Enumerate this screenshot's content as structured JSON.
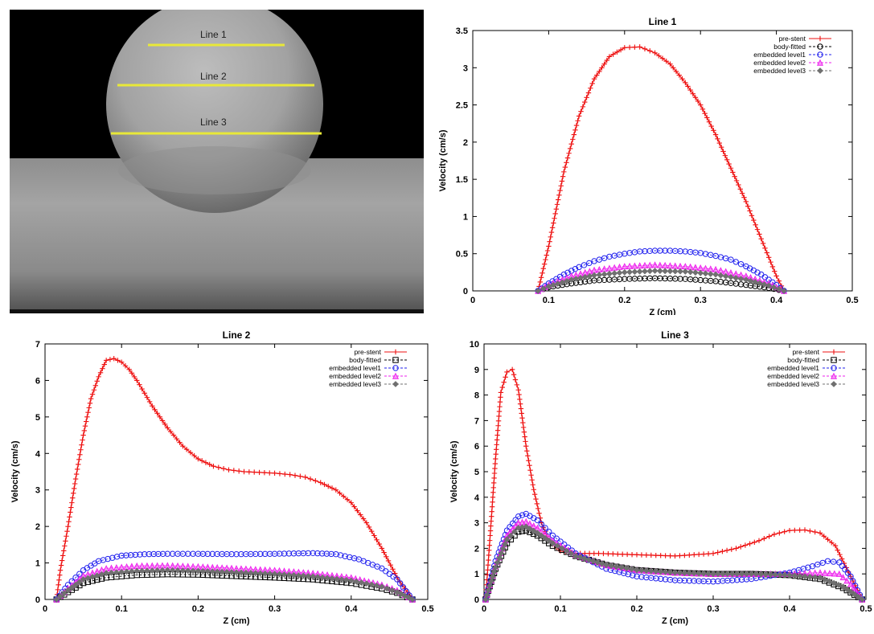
{
  "image_panel": {
    "labels": [
      "Line 1",
      "Line 2",
      "Line 3"
    ],
    "line_color": "#e8e838"
  },
  "colors": {
    "pre_stent": "#ee1111",
    "body_fitted": "#000000",
    "embedded_level1": "#2222ee",
    "embedded_level2": "#ee22ee",
    "embedded_level3": "#707070"
  },
  "chart_data": [
    {
      "type": "line",
      "title": "Line 1",
      "xlabel": "Z (cm)",
      "ylabel": "Velocity (cm/s)",
      "xlim": [
        0,
        0.5
      ],
      "ylim": [
        0,
        3.5
      ],
      "xticks": [
        "0",
        "0.1",
        "0.2",
        "0.3",
        "0.4",
        "0.5"
      ],
      "yticks": [
        "0",
        "0.5",
        "1",
        "1.5",
        "2",
        "2.5",
        "3",
        "3.5"
      ],
      "legend": "top-right",
      "series": [
        {
          "name": "pre-stent",
          "marker": "plus",
          "x": [
            0.086,
            0.1,
            0.12,
            0.14,
            0.16,
            0.18,
            0.2,
            0.22,
            0.24,
            0.26,
            0.28,
            0.3,
            0.32,
            0.34,
            0.36,
            0.38,
            0.4,
            0.41
          ],
          "y": [
            0,
            0.6,
            1.6,
            2.35,
            2.85,
            3.15,
            3.27,
            3.28,
            3.2,
            3.05,
            2.8,
            2.5,
            2.1,
            1.65,
            1.2,
            0.7,
            0.2,
            0
          ]
        },
        {
          "name": "body-fitted",
          "marker": "circle",
          "x": [
            0.086,
            0.1,
            0.13,
            0.16,
            0.2,
            0.24,
            0.28,
            0.32,
            0.36,
            0.39,
            0.41
          ],
          "y": [
            0,
            0.05,
            0.1,
            0.14,
            0.16,
            0.17,
            0.16,
            0.13,
            0.08,
            0.04,
            0
          ]
        },
        {
          "name": "embedded level1",
          "marker": "circle",
          "x": [
            0.086,
            0.1,
            0.12,
            0.14,
            0.16,
            0.18,
            0.2,
            0.22,
            0.24,
            0.26,
            0.28,
            0.3,
            0.32,
            0.34,
            0.36,
            0.38,
            0.4,
            0.41
          ],
          "y": [
            0,
            0.1,
            0.22,
            0.32,
            0.4,
            0.46,
            0.5,
            0.53,
            0.54,
            0.54,
            0.53,
            0.51,
            0.47,
            0.42,
            0.33,
            0.22,
            0.08,
            0
          ]
        },
        {
          "name": "embedded level2",
          "marker": "triangle",
          "x": [
            0.086,
            0.1,
            0.13,
            0.16,
            0.2,
            0.24,
            0.28,
            0.32,
            0.36,
            0.39,
            0.41
          ],
          "y": [
            0,
            0.08,
            0.2,
            0.28,
            0.33,
            0.35,
            0.33,
            0.29,
            0.2,
            0.1,
            0
          ]
        },
        {
          "name": "embedded level3",
          "marker": "diamond",
          "x": [
            0.086,
            0.1,
            0.13,
            0.16,
            0.2,
            0.24,
            0.28,
            0.32,
            0.36,
            0.39,
            0.41
          ],
          "y": [
            0,
            0.06,
            0.15,
            0.21,
            0.25,
            0.27,
            0.26,
            0.22,
            0.15,
            0.07,
            0
          ]
        }
      ]
    },
    {
      "type": "line",
      "title": "Line 2",
      "xlabel": "Z (cm)",
      "ylabel": "Velocity (cm/s)",
      "xlim": [
        0,
        0.5
      ],
      "ylim": [
        0,
        7
      ],
      "xticks": [
        "0",
        "0.1",
        "0.2",
        "0.3",
        "0.4",
        "0.5"
      ],
      "yticks": [
        "0",
        "1",
        "2",
        "3",
        "4",
        "5",
        "6",
        "7"
      ],
      "legend": "top-right",
      "series": [
        {
          "name": "pre-stent",
          "marker": "plus",
          "x": [
            0.015,
            0.02,
            0.03,
            0.04,
            0.05,
            0.06,
            0.07,
            0.08,
            0.09,
            0.1,
            0.11,
            0.12,
            0.14,
            0.16,
            0.18,
            0.2,
            0.22,
            0.24,
            0.26,
            0.28,
            0.3,
            0.32,
            0.34,
            0.36,
            0.38,
            0.4,
            0.42,
            0.44,
            0.46,
            0.48
          ],
          "y": [
            0,
            0.8,
            2.0,
            3.3,
            4.5,
            5.5,
            6.1,
            6.55,
            6.6,
            6.5,
            6.3,
            6.0,
            5.3,
            4.7,
            4.2,
            3.85,
            3.65,
            3.55,
            3.5,
            3.48,
            3.46,
            3.42,
            3.35,
            3.2,
            3.0,
            2.65,
            2.1,
            1.4,
            0.6,
            0
          ]
        },
        {
          "name": "body-fitted",
          "marker": "square",
          "x": [
            0.015,
            0.03,
            0.05,
            0.08,
            0.12,
            0.16,
            0.2,
            0.25,
            0.3,
            0.35,
            0.4,
            0.44,
            0.46,
            0.48
          ],
          "y": [
            0,
            0.2,
            0.45,
            0.6,
            0.67,
            0.69,
            0.68,
            0.64,
            0.6,
            0.55,
            0.45,
            0.3,
            0.18,
            0
          ]
        },
        {
          "name": "embedded level1",
          "marker": "circle",
          "x": [
            0.015,
            0.03,
            0.05,
            0.07,
            0.1,
            0.13,
            0.16,
            0.2,
            0.25,
            0.3,
            0.35,
            0.38,
            0.41,
            0.44,
            0.46,
            0.48
          ],
          "y": [
            0,
            0.4,
            0.8,
            1.05,
            1.2,
            1.24,
            1.25,
            1.25,
            1.24,
            1.25,
            1.27,
            1.24,
            1.1,
            0.85,
            0.55,
            0
          ]
        },
        {
          "name": "embedded level2",
          "marker": "triangle",
          "x": [
            0.015,
            0.03,
            0.05,
            0.08,
            0.12,
            0.16,
            0.2,
            0.25,
            0.3,
            0.35,
            0.4,
            0.44,
            0.46,
            0.48
          ],
          "y": [
            0,
            0.3,
            0.65,
            0.85,
            0.92,
            0.93,
            0.9,
            0.85,
            0.8,
            0.72,
            0.6,
            0.4,
            0.25,
            0
          ]
        },
        {
          "name": "embedded level3",
          "marker": "diamond",
          "x": [
            0.015,
            0.03,
            0.05,
            0.08,
            0.12,
            0.16,
            0.2,
            0.25,
            0.3,
            0.35,
            0.4,
            0.44,
            0.46,
            0.48
          ],
          "y": [
            0,
            0.25,
            0.55,
            0.72,
            0.78,
            0.8,
            0.78,
            0.74,
            0.7,
            0.63,
            0.52,
            0.35,
            0.2,
            0
          ]
        }
      ]
    },
    {
      "type": "line",
      "title": "Line 3",
      "xlabel": "Z (cm)",
      "ylabel": "Velocity (cm/s)",
      "xlim": [
        0,
        0.5
      ],
      "ylim": [
        0,
        10
      ],
      "xticks": [
        "0",
        "0.1",
        "0.2",
        "0.3",
        "0.4",
        "0.5"
      ],
      "yticks": [
        "0",
        "1",
        "2",
        "3",
        "4",
        "5",
        "6",
        "7",
        "8",
        "9",
        "10"
      ],
      "legend": "top-right",
      "series": [
        {
          "name": "pre-stent",
          "marker": "plus",
          "x": [
            0.002,
            0.008,
            0.015,
            0.022,
            0.03,
            0.037,
            0.045,
            0.055,
            0.065,
            0.075,
            0.085,
            0.1,
            0.12,
            0.15,
            0.2,
            0.25,
            0.3,
            0.33,
            0.36,
            0.38,
            0.4,
            0.42,
            0.44,
            0.46,
            0.48,
            0.495
          ],
          "y": [
            0,
            2.5,
            5.5,
            8.1,
            8.9,
            9.0,
            8.2,
            6.0,
            4.3,
            3.0,
            2.3,
            1.9,
            1.8,
            1.8,
            1.75,
            1.7,
            1.8,
            2.0,
            2.3,
            2.55,
            2.7,
            2.72,
            2.6,
            2.1,
            0.9,
            0
          ]
        },
        {
          "name": "body-fitted",
          "marker": "square",
          "x": [
            0.002,
            0.015,
            0.03,
            0.045,
            0.055,
            0.07,
            0.09,
            0.12,
            0.16,
            0.2,
            0.25,
            0.3,
            0.35,
            0.4,
            0.44,
            0.47,
            0.495
          ],
          "y": [
            0,
            1.2,
            2.2,
            2.65,
            2.7,
            2.5,
            2.1,
            1.7,
            1.35,
            1.15,
            1.05,
            1.0,
            1.0,
            0.95,
            0.8,
            0.45,
            0
          ]
        },
        {
          "name": "embedded level1",
          "marker": "circle",
          "x": [
            0.002,
            0.015,
            0.03,
            0.045,
            0.055,
            0.07,
            0.09,
            0.12,
            0.16,
            0.2,
            0.25,
            0.3,
            0.35,
            0.4,
            0.43,
            0.45,
            0.465,
            0.48,
            0.495
          ],
          "y": [
            0,
            1.5,
            2.7,
            3.25,
            3.35,
            3.1,
            2.5,
            1.8,
            1.2,
            0.9,
            0.75,
            0.7,
            0.8,
            1.05,
            1.3,
            1.5,
            1.45,
            0.9,
            0
          ]
        },
        {
          "name": "embedded level2",
          "marker": "triangle",
          "x": [
            0.002,
            0.015,
            0.03,
            0.045,
            0.055,
            0.07,
            0.09,
            0.12,
            0.16,
            0.2,
            0.25,
            0.3,
            0.35,
            0.4,
            0.44,
            0.465,
            0.48,
            0.495
          ],
          "y": [
            0,
            1.3,
            2.5,
            3.0,
            3.05,
            2.8,
            2.3,
            1.75,
            1.35,
            1.15,
            1.05,
            1.0,
            1.0,
            1.0,
            1.05,
            1.0,
            0.6,
            0
          ]
        },
        {
          "name": "embedded level3",
          "marker": "diamond",
          "x": [
            0.002,
            0.015,
            0.03,
            0.045,
            0.055,
            0.07,
            0.09,
            0.12,
            0.16,
            0.2,
            0.25,
            0.3,
            0.35,
            0.4,
            0.44,
            0.47,
            0.495
          ],
          "y": [
            0,
            1.25,
            2.35,
            2.8,
            2.85,
            2.6,
            2.2,
            1.7,
            1.35,
            1.15,
            1.05,
            1.0,
            1.0,
            0.95,
            0.85,
            0.5,
            0
          ]
        }
      ]
    }
  ]
}
